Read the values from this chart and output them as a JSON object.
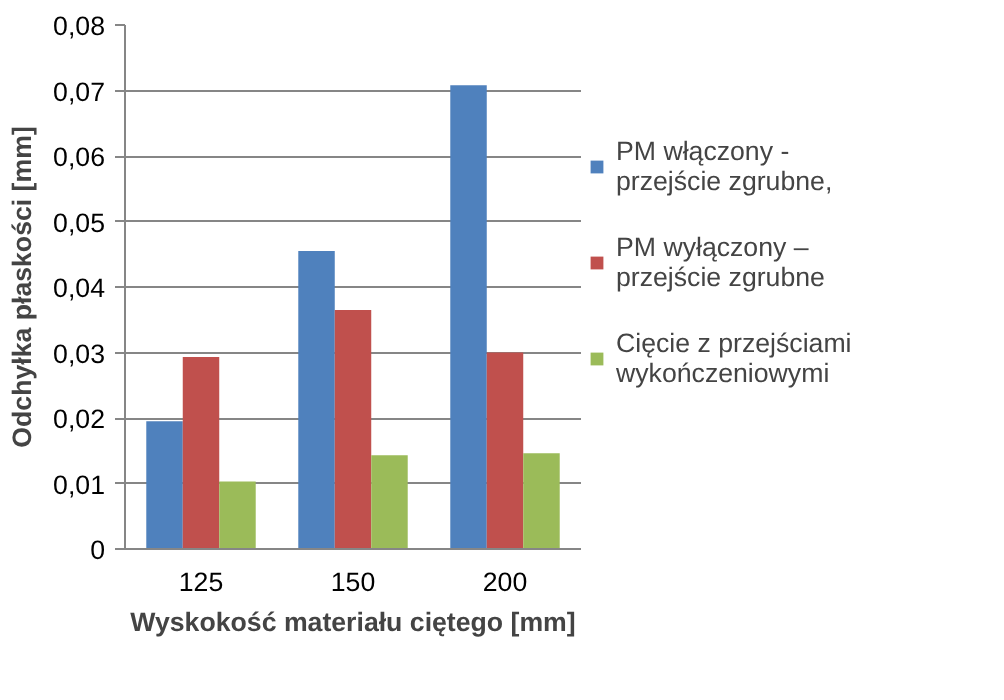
{
  "chart_data": {
    "type": "bar",
    "xlabel": "Wyskokość materiału ciętego [mm]",
    "ylabel": "Odchyłka płaskości [mm]",
    "categories": [
      "125",
      "150",
      "200"
    ],
    "series": [
      {
        "name": "PM włączony - przejście zgrubne,",
        "color": "#4f81bd",
        "values": [
          0.0195,
          0.0455,
          0.0708
        ]
      },
      {
        "name": "PM wyłączony – przejście zgrubne",
        "color": "#c0504d",
        "values": [
          0.0293,
          0.0365,
          0.03
        ]
      },
      {
        "name": "Cięcie z przejściami wykończeniowymi",
        "color": "#9bbb59",
        "values": [
          0.0103,
          0.0143,
          0.0146
        ]
      }
    ],
    "ylim": [
      0,
      0.08
    ],
    "yticks": [
      0,
      {
        "value": 0.01,
        "label": "0,01"
      },
      {
        "value": 0.02,
        "label": "0,02"
      },
      {
        "value": 0.03,
        "label": "0,03"
      },
      {
        "value": 0.04,
        "label": "0,04"
      },
      {
        "value": 0.05,
        "label": "0,05"
      },
      {
        "value": 0.06,
        "label": "0,06"
      },
      {
        "value": 0.07,
        "label": "0,07"
      },
      {
        "value": 0.08,
        "label": "0,08"
      }
    ],
    "grid": "y",
    "legend": "right"
  }
}
